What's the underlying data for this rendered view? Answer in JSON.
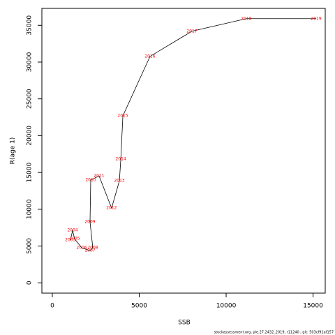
{
  "chart_data": {
    "type": "line",
    "xlabel": "SSB",
    "ylabel": "R(age 1)",
    "labels": [
      "2003",
      "2004",
      "2005",
      "2006",
      "2007",
      "2008",
      "2009",
      "2010",
      "2011",
      "2012",
      "2013",
      "2014",
      "2015",
      "2016",
      "2017",
      "2018",
      "2019"
    ],
    "x": [
      1044,
      1165,
      1285,
      1690,
      2170,
      2330,
      2170,
      2210,
      2690,
      3410,
      3860,
      3940,
      4060,
      5620,
      8030,
      11160,
      15180
    ],
    "values": [
      5790,
      7120,
      5980,
      4750,
      4370,
      4750,
      8260,
      13960,
      14530,
      10160,
      13860,
      16810,
      22700,
      30770,
      34190,
      35900,
      35900
    ],
    "color": "#000000",
    "label_color": "#ff0000",
    "xlim": [
      -600,
      15700
    ],
    "ylim": [
      -1400,
      37300
    ],
    "xticks": [
      0,
      5000,
      10000,
      15000
    ],
    "yticks": [
      0,
      5000,
      10000,
      15000,
      20000,
      25000,
      30000,
      35000
    ],
    "footnote": "stockassessment.org, ple.27.2432_2019, r11240 , git: 503cf91af157"
  }
}
